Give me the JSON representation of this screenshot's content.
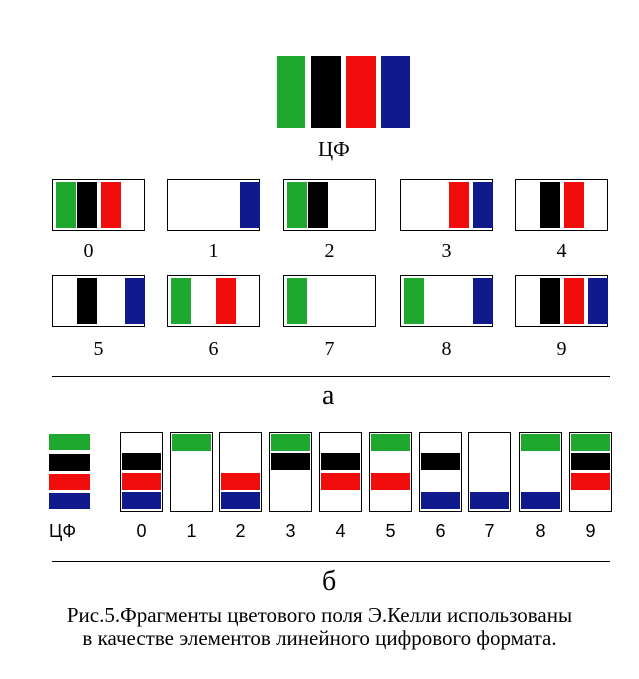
{
  "colors": {
    "green": "#1fa82e",
    "black": "#000000",
    "red": "#f20d0d",
    "blue": "#101a8c"
  },
  "top_legend_label": "ЦФ",
  "section_a": {
    "label": "а",
    "digits": [
      {
        "digit": "0",
        "stripes": [
          "green",
          "black",
          "red"
        ]
      },
      {
        "digit": "1",
        "stripes": [
          "blue"
        ]
      },
      {
        "digit": "2",
        "stripes": [
          "green",
          "black"
        ]
      },
      {
        "digit": "3",
        "stripes": [
          "red",
          "blue"
        ]
      },
      {
        "digit": "4",
        "stripes": [
          "black",
          "red"
        ]
      },
      {
        "digit": "5",
        "stripes": [
          "black",
          "blue"
        ]
      },
      {
        "digit": "6",
        "stripes": [
          "green",
          "red"
        ]
      },
      {
        "digit": "7",
        "stripes": [
          "green"
        ]
      },
      {
        "digit": "8",
        "stripes": [
          "green",
          "blue"
        ]
      },
      {
        "digit": "9",
        "stripes": [
          "black",
          "red",
          "blue"
        ]
      }
    ]
  },
  "section_b": {
    "label": "б",
    "legend_label": "ЦФ",
    "digits": [
      {
        "digit": "0",
        "bars": [
          "black",
          "red",
          "blue"
        ]
      },
      {
        "digit": "1",
        "bars": [
          "green"
        ]
      },
      {
        "digit": "2",
        "bars": [
          "red",
          "blue"
        ]
      },
      {
        "digit": "3",
        "bars": [
          "green",
          "black"
        ]
      },
      {
        "digit": "4",
        "bars": [
          "black",
          "red"
        ]
      },
      {
        "digit": "5",
        "bars": [
          "green",
          "red"
        ]
      },
      {
        "digit": "6",
        "bars": [
          "black",
          "blue"
        ]
      },
      {
        "digit": "7",
        "bars": [
          "blue"
        ]
      },
      {
        "digit": "8",
        "bars": [
          "green",
          "blue"
        ]
      },
      {
        "digit": "9",
        "bars": [
          "green",
          "black",
          "red"
        ]
      }
    ]
  },
  "caption": {
    "line1": "Рис.5.Фрагменты  цветового поля Э.Келли  использованы",
    "line2": "в качестве элементов линейного  цифрового формата."
  }
}
